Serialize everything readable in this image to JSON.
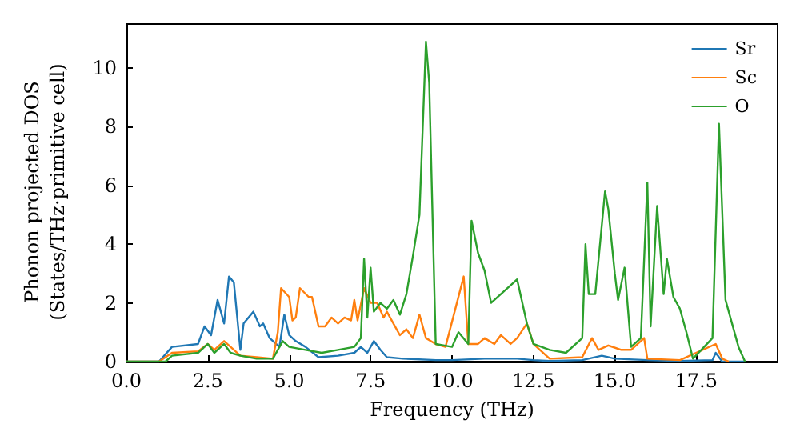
{
  "chart_data": {
    "type": "line",
    "xlabel": "Frequency (THz)",
    "ylabel": "Phonon projected DOS\n(States/THz·primitive cell)",
    "xlim": [
      0,
      20
    ],
    "ylim": [
      0,
      11.5
    ],
    "xticks": [
      {
        "value": 0,
        "label": "0.0"
      },
      {
        "value": 2.5,
        "label": "2.5"
      },
      {
        "value": 5,
        "label": "5.0"
      },
      {
        "value": 7.5,
        "label": "7.5"
      },
      {
        "value": 10,
        "label": "10.0"
      },
      {
        "value": 12.5,
        "label": "12.5"
      },
      {
        "value": 15,
        "label": "15.0"
      },
      {
        "value": 17.5,
        "label": "17.5"
      }
    ],
    "yticks": [
      0,
      2,
      4,
      6,
      8,
      10
    ],
    "grid": false,
    "legend": "top right",
    "marker": "none",
    "line_style": "solid",
    "series": [
      {
        "name": "Sr",
        "color": "#1f77b4",
        "x": [
          0,
          1.0,
          1.4,
          2.2,
          2.4,
          2.6,
          2.8,
          3.0,
          3.15,
          3.3,
          3.5,
          3.6,
          3.9,
          4.1,
          4.2,
          4.4,
          4.7,
          4.85,
          5.0,
          5.2,
          5.5,
          5.9,
          6.5,
          7.0,
          7.2,
          7.4,
          7.6,
          7.8,
          8.0,
          8.5,
          9.5,
          10,
          11,
          12,
          12.5,
          13,
          14,
          14.6,
          15,
          16,
          17,
          18,
          18.1,
          18.3,
          19
        ],
        "values": [
          0,
          0,
          0.5,
          0.6,
          1.2,
          0.9,
          2.1,
          1.3,
          2.9,
          2.7,
          0.4,
          1.3,
          1.7,
          1.2,
          1.3,
          0.8,
          0.5,
          1.6,
          0.9,
          0.7,
          0.5,
          0.15,
          0.2,
          0.3,
          0.5,
          0.3,
          0.7,
          0.4,
          0.15,
          0.1,
          0.05,
          0.05,
          0.1,
          0.1,
          0.05,
          0.02,
          0.05,
          0.2,
          0.1,
          0.05,
          0.02,
          0.05,
          0.3,
          0,
          0
        ]
      },
      {
        "name": "Sc",
        "color": "#ff7f0e",
        "x": [
          0,
          1.0,
          1.4,
          2.2,
          2.5,
          2.7,
          3.0,
          3.2,
          3.5,
          4.0,
          4.5,
          4.65,
          4.75,
          5.0,
          5.1,
          5.2,
          5.33,
          5.6,
          5.7,
          5.9,
          6.1,
          6.3,
          6.5,
          6.7,
          6.9,
          7.0,
          7.1,
          7.3,
          7.5,
          7.7,
          7.9,
          8.0,
          8.2,
          8.4,
          8.6,
          8.8,
          9.0,
          9.2,
          9.5,
          9.8,
          10.36,
          10.5,
          10.8,
          11.0,
          11.3,
          11.5,
          11.8,
          12.0,
          12.3,
          12.5,
          12.7,
          13,
          14,
          14.3,
          14.5,
          14.8,
          15.2,
          15.5,
          15.9,
          16.0,
          17,
          18.1,
          18.3,
          18.5
        ],
        "values": [
          0,
          0,
          0.3,
          0.35,
          0.6,
          0.4,
          0.7,
          0.5,
          0.2,
          0.15,
          0.1,
          1.0,
          2.5,
          2.2,
          1.4,
          1.5,
          2.5,
          2.2,
          2.2,
          1.2,
          1.2,
          1.5,
          1.3,
          1.5,
          1.4,
          2.1,
          1.4,
          2.5,
          2.0,
          2.0,
          1.5,
          1.7,
          1.3,
          0.9,
          1.1,
          0.8,
          1.6,
          0.8,
          0.6,
          0.5,
          2.9,
          0.6,
          0.6,
          0.8,
          0.6,
          0.9,
          0.6,
          0.8,
          1.3,
          0.6,
          0.4,
          0.1,
          0.15,
          0.8,
          0.4,
          0.55,
          0.4,
          0.4,
          0.8,
          0.1,
          0.05,
          0.6,
          0.1,
          0
        ]
      },
      {
        "name": "O",
        "color": "#2ca02c",
        "x": [
          0,
          1.2,
          1.4,
          2.2,
          2.5,
          2.7,
          3.0,
          3.2,
          3.5,
          4.0,
          4.5,
          4.8,
          5.0,
          5.5,
          6.0,
          6.5,
          7.0,
          7.2,
          7.3,
          7.4,
          7.5,
          7.6,
          7.8,
          8.0,
          8.2,
          8.4,
          8.6,
          8.8,
          9.0,
          9.2,
          9.3,
          9.5,
          10.0,
          10.2,
          10.5,
          10.6,
          10.8,
          11.0,
          11.2,
          11.5,
          11.8,
          12.0,
          12.3,
          12.5,
          13,
          13.5,
          14,
          14.1,
          14.2,
          14.4,
          14.7,
          14.8,
          15.0,
          15.1,
          15.3,
          15.5,
          15.8,
          16.0,
          16.1,
          16.3,
          16.5,
          16.6,
          16.8,
          17.0,
          17.2,
          17.4,
          18.0,
          18.2,
          18.4,
          18.8,
          19.0
        ],
        "values": [
          0,
          0,
          0.2,
          0.3,
          0.6,
          0.3,
          0.6,
          0.3,
          0.2,
          0.1,
          0.1,
          0.7,
          0.5,
          0.4,
          0.3,
          0.4,
          0.5,
          0.8,
          3.5,
          1.5,
          3.2,
          1.7,
          2.0,
          1.8,
          2.1,
          1.6,
          2.3,
          3.6,
          5.0,
          10.9,
          9.5,
          0.6,
          0.5,
          1.0,
          0.6,
          4.8,
          3.7,
          3.1,
          2.0,
          2.3,
          2.6,
          2.8,
          1.3,
          0.6,
          0.4,
          0.3,
          0.8,
          4.0,
          2.3,
          2.3,
          5.8,
          5.2,
          3.0,
          2.1,
          3.2,
          0.5,
          0.8,
          6.1,
          1.2,
          5.3,
          2.3,
          3.5,
          2.2,
          1.8,
          1.0,
          0.1,
          0.8,
          8.1,
          2.1,
          0.5,
          0
        ]
      }
    ]
  }
}
